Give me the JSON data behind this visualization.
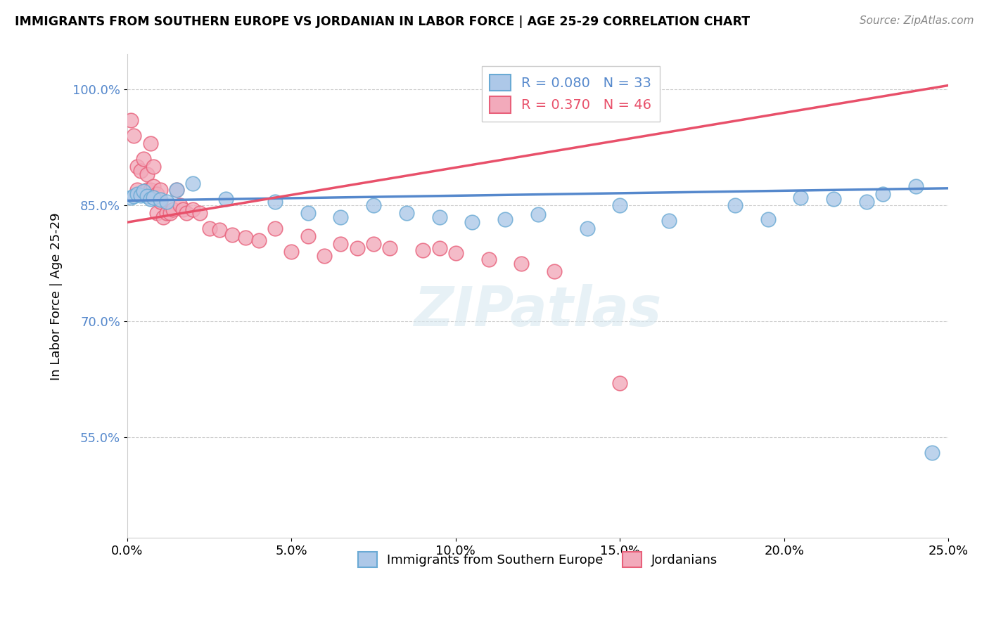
{
  "title": "IMMIGRANTS FROM SOUTHERN EUROPE VS JORDANIAN IN LABOR FORCE | AGE 25-29 CORRELATION CHART",
  "source": "Source: ZipAtlas.com",
  "ylabel": "In Labor Force | Age 25-29",
  "xmin": 0.0,
  "xmax": 0.25,
  "ymin": 0.42,
  "ymax": 1.045,
  "yticks": [
    0.55,
    0.7,
    0.85,
    1.0
  ],
  "ytick_labels": [
    "55.0%",
    "70.0%",
    "85.0%",
    "100.0%"
  ],
  "xticks": [
    0.0,
    0.05,
    0.1,
    0.15,
    0.2,
    0.25
  ],
  "xtick_labels": [
    "0.0%",
    "5.0%",
    "10.0%",
    "15.0%",
    "20.0%",
    "25.0%"
  ],
  "blue_R": 0.08,
  "blue_N": 33,
  "pink_R": 0.37,
  "pink_N": 46,
  "blue_color": "#adc8e8",
  "pink_color": "#f2aabb",
  "blue_edge_color": "#6aaad4",
  "pink_edge_color": "#e8607a",
  "blue_line_color": "#5588cc",
  "pink_line_color": "#e8506a",
  "watermark": "ZIPatlas",
  "legend_blue_label": "Immigrants from Southern Europe",
  "legend_pink_label": "Jordanians",
  "blue_trend_x0": 0.0,
  "blue_trend_y0": 0.856,
  "blue_trend_x1": 0.25,
  "blue_trend_y1": 0.872,
  "pink_trend_x0": 0.0,
  "pink_trend_y0": 0.828,
  "pink_trend_x1": 0.25,
  "pink_trend_y1": 1.005,
  "blue_x": [
    0.001,
    0.002,
    0.003,
    0.004,
    0.005,
    0.006,
    0.007,
    0.008,
    0.01,
    0.012,
    0.015,
    0.02,
    0.03,
    0.045,
    0.055,
    0.065,
    0.075,
    0.085,
    0.095,
    0.105,
    0.115,
    0.125,
    0.14,
    0.15,
    0.165,
    0.185,
    0.195,
    0.205,
    0.215,
    0.225,
    0.23,
    0.24,
    0.245
  ],
  "blue_y": [
    0.86,
    0.862,
    0.865,
    0.863,
    0.868,
    0.862,
    0.858,
    0.86,
    0.857,
    0.855,
    0.87,
    0.878,
    0.858,
    0.855,
    0.84,
    0.835,
    0.85,
    0.84,
    0.835,
    0.828,
    0.832,
    0.838,
    0.82,
    0.85,
    0.83,
    0.85,
    0.832,
    0.86,
    0.858,
    0.855,
    0.865,
    0.875,
    0.53
  ],
  "pink_x": [
    0.001,
    0.002,
    0.003,
    0.003,
    0.004,
    0.005,
    0.006,
    0.006,
    0.007,
    0.007,
    0.008,
    0.008,
    0.009,
    0.009,
    0.01,
    0.01,
    0.011,
    0.012,
    0.013,
    0.014,
    0.015,
    0.016,
    0.017,
    0.018,
    0.02,
    0.022,
    0.025,
    0.028,
    0.032,
    0.036,
    0.04,
    0.05,
    0.06,
    0.07,
    0.08,
    0.09,
    0.1,
    0.11,
    0.12,
    0.13,
    0.045,
    0.055,
    0.065,
    0.075,
    0.095,
    0.15
  ],
  "pink_y": [
    0.96,
    0.94,
    0.9,
    0.87,
    0.895,
    0.91,
    0.87,
    0.89,
    0.93,
    0.87,
    0.9,
    0.875,
    0.865,
    0.84,
    0.855,
    0.87,
    0.835,
    0.84,
    0.84,
    0.845,
    0.87,
    0.85,
    0.845,
    0.84,
    0.845,
    0.84,
    0.82,
    0.818,
    0.812,
    0.808,
    0.805,
    0.79,
    0.785,
    0.795,
    0.795,
    0.792,
    0.788,
    0.78,
    0.775,
    0.765,
    0.82,
    0.81,
    0.8,
    0.8,
    0.795,
    0.62
  ]
}
